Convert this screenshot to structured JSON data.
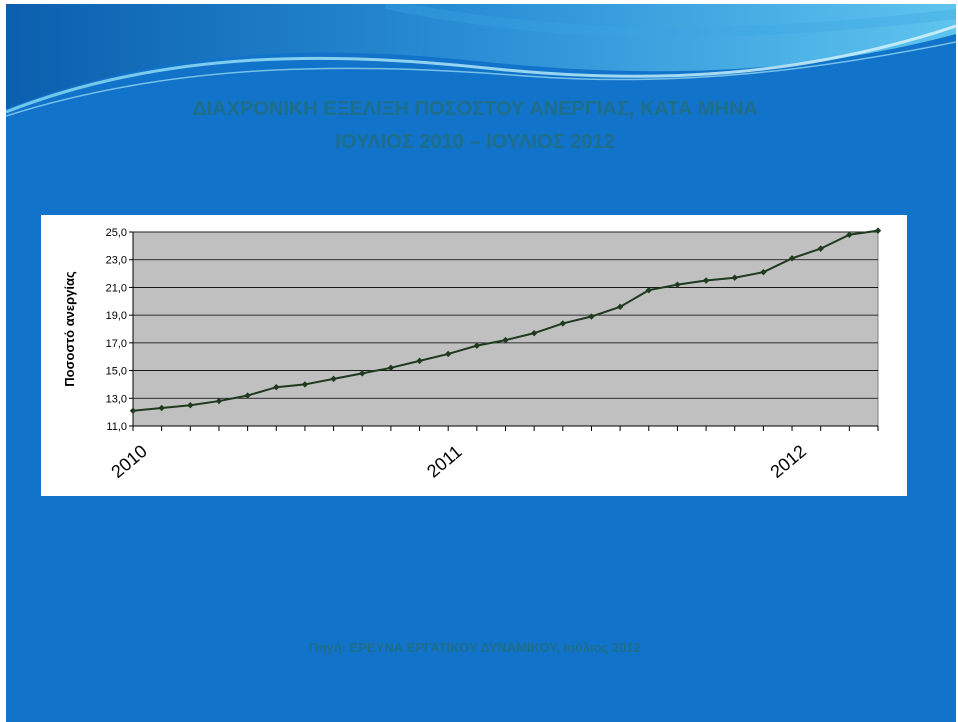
{
  "slide": {
    "title_line1": "ΔΙΑΧΡΟΝΙΚΗ ΕΞΕΛΙΞΗ  ΠΟΣΟΣΤΟΥ ΑΝΕΡΓΙΑΣ, ΚΑΤΑ ΜΗΝΑ",
    "title_line2": "ΙΟΥΛΙΟΣ 2010 – ΙΟΥΛΙΟΣ 2012",
    "source": "Πηγή: ΕΡΕΥΝΑ ΕΡΓΑΤΙΚΟΥ ΔΥΝΑΜΙΚΟΥ, Ιούλιος 2012"
  },
  "colors": {
    "slide_background": "#1173c9",
    "title_text": "#1f6e8a",
    "plot_background": "#c0c0c0",
    "line": "#1f3a1f",
    "marker": "#1f3a1f",
    "gridline": "#000000"
  },
  "chart_data": {
    "type": "line",
    "title": "",
    "xlabel": "",
    "ylabel": "Ποσοστό ανεργίας",
    "ylim": [
      11.0,
      25.0
    ],
    "yticks": [
      "11,0",
      "13,0",
      "15,0",
      "17,0",
      "19,0",
      "21,0",
      "23,0",
      "25,0"
    ],
    "ytick_values": [
      11,
      13,
      15,
      17,
      19,
      21,
      23,
      25
    ],
    "xtick_labels": [
      {
        "label": "2010",
        "index": 0
      },
      {
        "label": "2011",
        "index": 11
      },
      {
        "label": "2012",
        "index": 23
      }
    ],
    "grid": true,
    "legend": "none",
    "series": [
      {
        "values": [
          12.1,
          12.3,
          12.5,
          12.8,
          13.2,
          13.8,
          14.0,
          14.4,
          14.8,
          15.2,
          15.7,
          16.2,
          16.8,
          17.2,
          17.7,
          18.4,
          18.9,
          19.6,
          20.8,
          21.2,
          21.5,
          21.7,
          22.1,
          23.1,
          23.8,
          24.8,
          25.1
        ]
      }
    ]
  }
}
